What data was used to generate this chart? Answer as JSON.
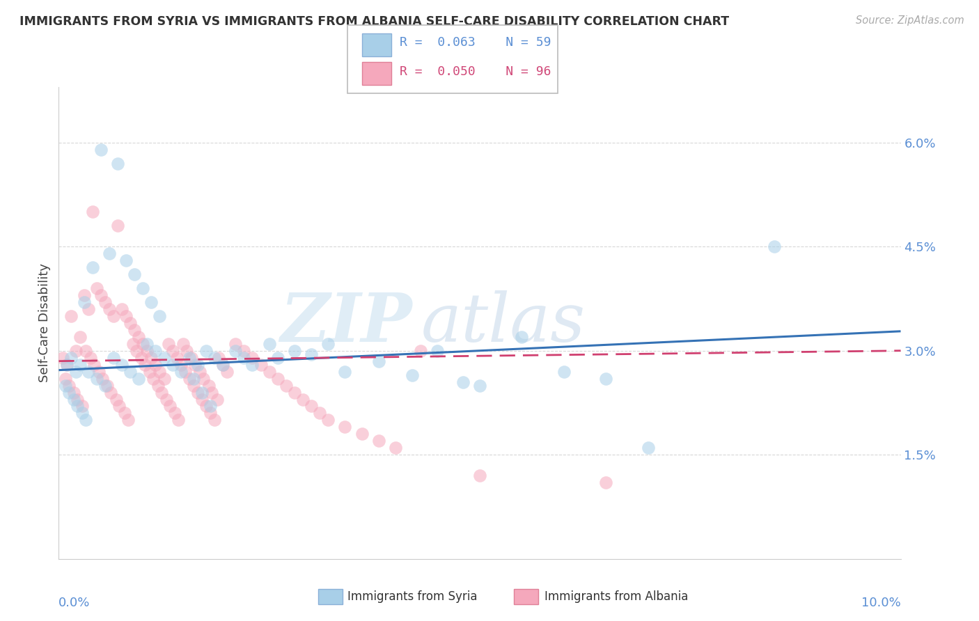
{
  "title": "IMMIGRANTS FROM SYRIA VS IMMIGRANTS FROM ALBANIA SELF-CARE DISABILITY CORRELATION CHART",
  "source": "Source: ZipAtlas.com",
  "ylabel": "Self-Care Disability",
  "xlim": [
    0.0,
    10.0
  ],
  "ylim": [
    0.0,
    6.8
  ],
  "ytick_vals": [
    1.5,
    3.0,
    4.5,
    6.0
  ],
  "ytick_labels": [
    "1.5%",
    "3.0%",
    "4.5%",
    "6.0%"
  ],
  "color_syria": "#a8cfe8",
  "color_albania": "#f5a8bc",
  "color_line_syria": "#3572b5",
  "color_line_albania": "#d04070",
  "syria_R": 0.063,
  "syria_N": 59,
  "albania_R": 0.05,
  "albania_N": 96,
  "syria_line_x0": 0.0,
  "syria_line_y0": 2.72,
  "syria_line_x1": 10.0,
  "syria_line_y1": 3.28,
  "albania_line_x0": 0.0,
  "albania_line_y0": 2.85,
  "albania_line_x1": 10.0,
  "albania_line_y1": 3.0,
  "watermark1": "ZIP",
  "watermark2": "atlas",
  "background_color": "#ffffff",
  "grid_color": "#d8d8d8",
  "tick_color": "#5b8fd4",
  "syria_x": [
    0.5,
    0.7,
    0.4,
    0.3,
    0.6,
    0.8,
    0.9,
    1.0,
    1.1,
    1.2,
    0.15,
    0.25,
    0.35,
    0.45,
    0.55,
    0.65,
    0.75,
    0.85,
    0.95,
    1.05,
    1.15,
    1.25,
    1.35,
    1.45,
    1.55,
    1.65,
    1.75,
    1.85,
    1.95,
    2.1,
    2.2,
    2.3,
    2.5,
    2.6,
    2.8,
    3.0,
    3.2,
    3.4,
    3.8,
    4.2,
    4.5,
    5.0,
    5.5,
    6.0,
    6.5,
    7.0,
    8.5,
    0.1,
    0.2,
    0.08,
    0.12,
    0.18,
    0.22,
    0.28,
    0.32,
    1.6,
    1.7,
    1.8,
    4.8
  ],
  "syria_y": [
    5.9,
    5.7,
    4.2,
    3.7,
    4.4,
    4.3,
    4.1,
    3.9,
    3.7,
    3.5,
    2.9,
    2.8,
    2.7,
    2.6,
    2.5,
    2.9,
    2.8,
    2.7,
    2.6,
    3.1,
    3.0,
    2.9,
    2.8,
    2.7,
    2.9,
    2.8,
    3.0,
    2.9,
    2.8,
    3.0,
    2.9,
    2.8,
    3.1,
    2.9,
    3.0,
    2.95,
    3.1,
    2.7,
    2.85,
    2.65,
    3.0,
    2.5,
    3.2,
    2.7,
    2.6,
    1.6,
    4.5,
    2.8,
    2.7,
    2.5,
    2.4,
    2.3,
    2.2,
    2.1,
    2.0,
    2.6,
    2.4,
    2.2,
    2.55
  ],
  "albania_x": [
    0.05,
    0.1,
    0.15,
    0.2,
    0.25,
    0.3,
    0.35,
    0.4,
    0.45,
    0.5,
    0.55,
    0.6,
    0.65,
    0.7,
    0.75,
    0.8,
    0.85,
    0.9,
    0.95,
    1.0,
    1.05,
    1.1,
    1.15,
    1.2,
    1.25,
    1.3,
    1.35,
    1.4,
    1.45,
    1.5,
    1.55,
    1.6,
    1.65,
    1.7,
    1.75,
    1.8,
    1.85,
    1.9,
    1.95,
    2.0,
    2.1,
    2.2,
    2.3,
    2.4,
    2.5,
    2.6,
    2.7,
    2.8,
    2.9,
    3.0,
    3.1,
    3.2,
    3.4,
    3.6,
    3.8,
    4.0,
    4.3,
    5.0,
    6.5,
    0.08,
    0.12,
    0.18,
    0.22,
    0.28,
    0.32,
    0.38,
    0.42,
    0.48,
    0.52,
    0.58,
    0.62,
    0.68,
    0.72,
    0.78,
    0.82,
    0.88,
    0.92,
    0.98,
    1.02,
    1.08,
    1.12,
    1.18,
    1.22,
    1.28,
    1.32,
    1.38,
    1.42,
    1.48,
    1.52,
    1.58,
    1.62,
    1.68,
    1.72,
    1.78,
    1.82,
    1.88
  ],
  "albania_y": [
    2.9,
    2.8,
    3.5,
    3.0,
    3.2,
    3.8,
    3.6,
    5.0,
    3.9,
    3.8,
    3.7,
    3.6,
    3.5,
    4.8,
    3.6,
    3.5,
    3.4,
    3.3,
    3.2,
    3.1,
    3.0,
    2.9,
    2.8,
    2.7,
    2.6,
    3.1,
    3.0,
    2.9,
    2.8,
    2.7,
    2.6,
    2.5,
    2.4,
    2.3,
    2.2,
    2.1,
    2.0,
    2.9,
    2.8,
    2.7,
    3.1,
    3.0,
    2.9,
    2.8,
    2.7,
    2.6,
    2.5,
    2.4,
    2.3,
    2.2,
    2.1,
    2.0,
    1.9,
    1.8,
    1.7,
    1.6,
    3.0,
    1.2,
    1.1,
    2.6,
    2.5,
    2.4,
    2.3,
    2.2,
    3.0,
    2.9,
    2.8,
    2.7,
    2.6,
    2.5,
    2.4,
    2.3,
    2.2,
    2.1,
    2.0,
    3.1,
    3.0,
    2.9,
    2.8,
    2.7,
    2.6,
    2.5,
    2.4,
    2.3,
    2.2,
    2.1,
    2.0,
    3.1,
    3.0,
    2.9,
    2.8,
    2.7,
    2.6,
    2.5,
    2.4,
    2.3
  ]
}
